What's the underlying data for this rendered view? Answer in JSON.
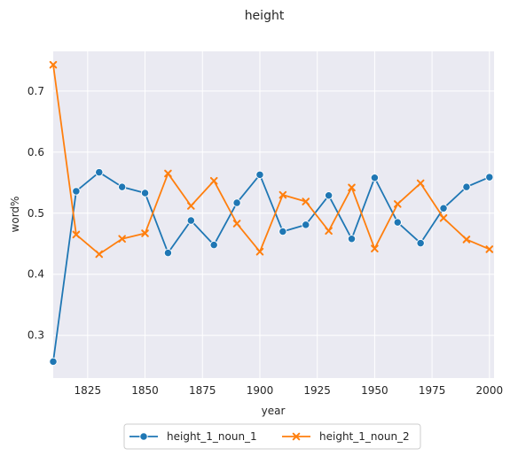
{
  "chart_data": {
    "type": "line",
    "title": "height",
    "xlabel": "year",
    "ylabel": "word%",
    "xlim": [
      1810,
      2002
    ],
    "ylim": [
      0.23,
      0.765
    ],
    "xticks": [
      1825,
      1850,
      1875,
      1900,
      1925,
      1950,
      1975,
      2000
    ],
    "yticks": [
      0.3,
      0.4,
      0.5,
      0.6,
      0.7
    ],
    "x": [
      1810,
      1820,
      1830,
      1840,
      1850,
      1860,
      1870,
      1880,
      1890,
      1900,
      1910,
      1920,
      1930,
      1940,
      1950,
      1960,
      1970,
      1980,
      1990,
      2000
    ],
    "series": [
      {
        "name": "height_1_noun_1",
        "color": "#1f77b4",
        "marker": "circle",
        "values": [
          0.257,
          0.536,
          0.567,
          0.543,
          0.533,
          0.435,
          0.488,
          0.448,
          0.517,
          0.563,
          0.47,
          0.481,
          0.529,
          0.458,
          0.558,
          0.485,
          0.451,
          0.508,
          0.543,
          0.559
        ]
      },
      {
        "name": "height_1_noun_2",
        "color": "#ff7f0e",
        "marker": "x",
        "values": [
          0.743,
          0.465,
          0.433,
          0.458,
          0.467,
          0.565,
          0.512,
          0.553,
          0.483,
          0.437,
          0.53,
          0.519,
          0.471,
          0.542,
          0.442,
          0.515,
          0.549,
          0.492,
          0.457,
          0.441
        ]
      }
    ],
    "grid": true,
    "legend_position": "bottom-center"
  }
}
